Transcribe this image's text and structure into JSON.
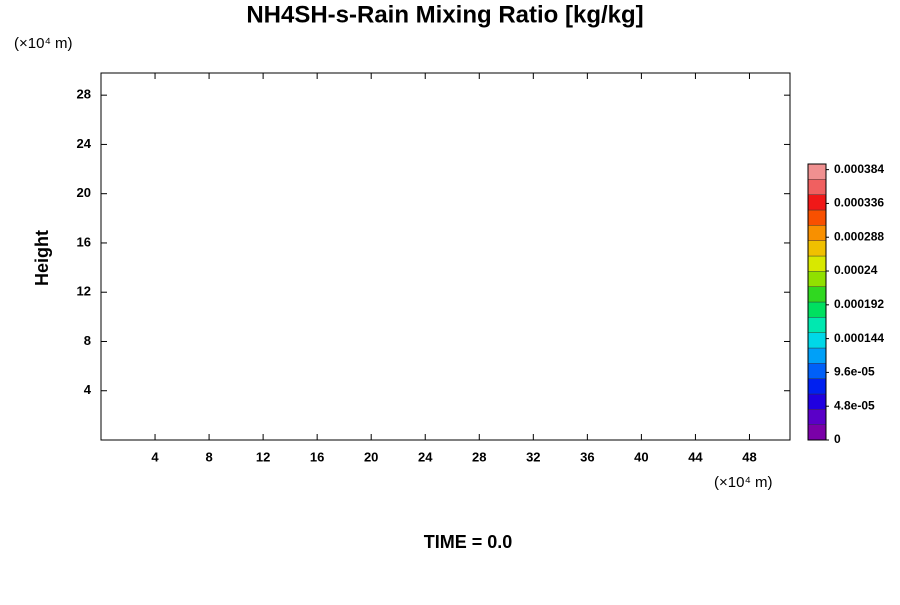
{
  "chart_data": {
    "type": "contour",
    "title": "NH4SH-s-Rain Mixing Ratio [kg/kg]",
    "ylabel": "Height",
    "xunit": "(×10⁴ m)",
    "yunit": "(×10⁴ m)",
    "footer": "TIME = 0.0",
    "xlim": [
      0,
      51
    ],
    "ylim": [
      0,
      29.8
    ],
    "xticks": [
      4,
      8,
      12,
      16,
      20,
      24,
      28,
      32,
      36,
      40,
      44,
      48
    ],
    "yticks": [
      4,
      8,
      12,
      16,
      20,
      24,
      28
    ],
    "colorbar": {
      "clim": [
        0,
        0.000392
      ],
      "ticks": [
        0,
        {
          "value": 4.8e-05,
          "label": "4.8e-05"
        },
        {
          "value": 9.6e-05,
          "label": "9.6e-05"
        },
        0.000144,
        0.000192,
        0.00024,
        0.000288,
        0.000336,
        0.000384
      ],
      "colors": [
        "#7a00a8",
        "#5a00c8",
        "#2000e0",
        "#0020f0",
        "#0060f8",
        "#00a0f8",
        "#00d8e8",
        "#00e8b0",
        "#00e060",
        "#30d820",
        "#90e000",
        "#d8e800",
        "#f0c000",
        "#f89000",
        "#f85000",
        "#f01818",
        "#f06060",
        "#f09090"
      ]
    }
  }
}
